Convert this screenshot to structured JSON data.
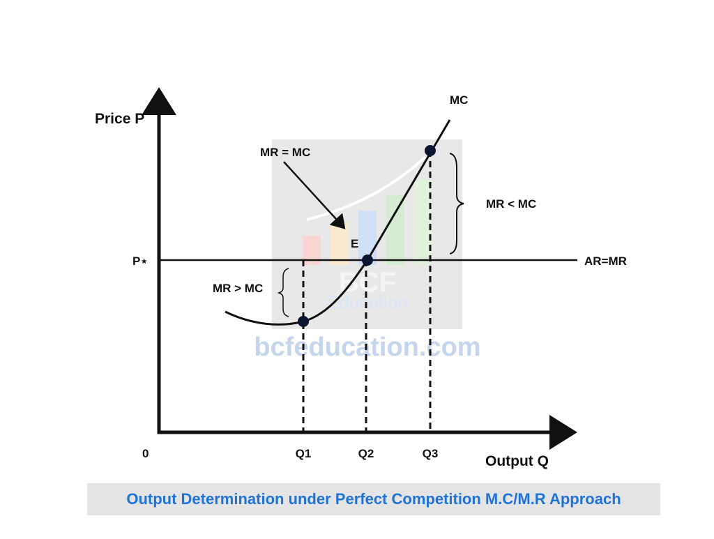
{
  "axes": {
    "y_label": "Price P",
    "x_label": "Output Q",
    "origin": "0",
    "price_level": "P⋆",
    "price_line": "AR=MR"
  },
  "quantities": [
    "Q1",
    "Q2",
    "Q3"
  ],
  "curve": "MC",
  "equilibrium": "E",
  "annotations": {
    "equal": "MR = MC",
    "less": "MR < MC",
    "greater": "MR > MC"
  },
  "watermark": {
    "logo": "BCF",
    "logo_sub": "Education",
    "site": "bcfeducation.com"
  },
  "caption": "Output Determination under Perfect Competition M.C/M.R Approach"
}
